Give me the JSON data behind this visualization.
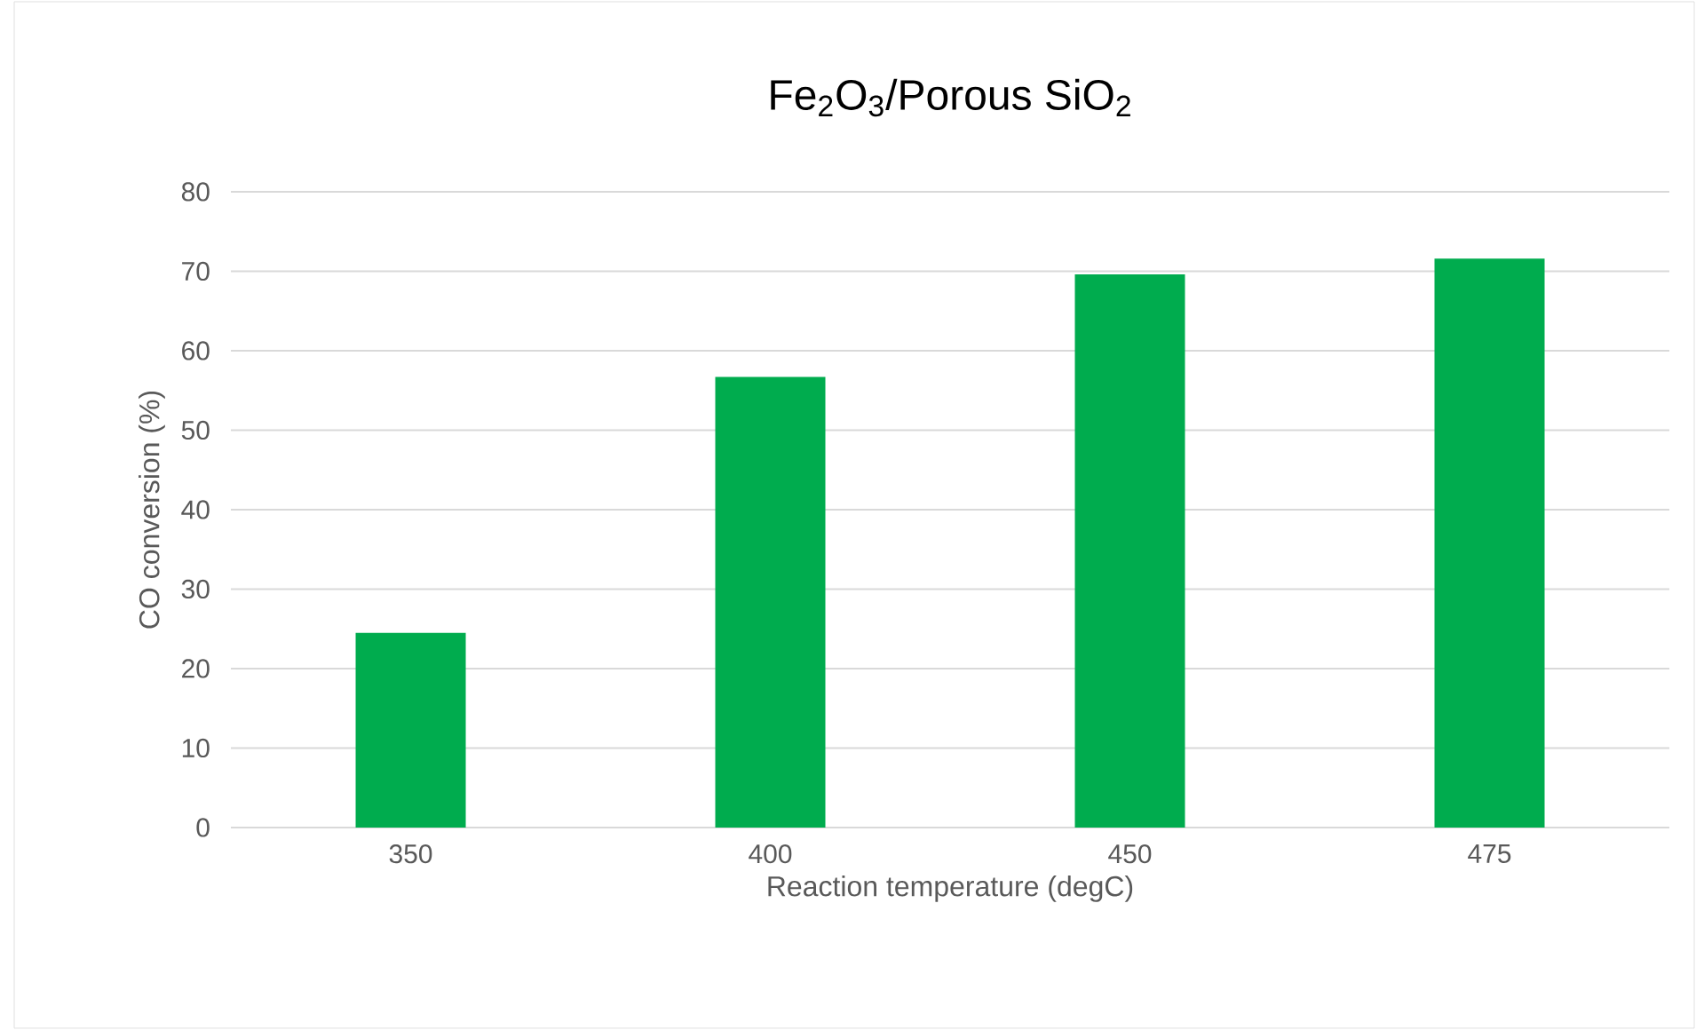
{
  "chart_data": {
    "type": "bar",
    "title": "Fe$_{2}$O$_{3}$/Porous SiO$_{2}$",
    "xlabel": "Reaction temperature (degC)",
    "ylabel": "CO conversion (%)",
    "categories": [
      "350",
      "400",
      "450",
      "475"
    ],
    "values": [
      24.5,
      56.7,
      69.6,
      71.6
    ],
    "color": "#00ac4e",
    "ylim": [
      0,
      80
    ],
    "yticks": [
      0,
      10,
      20,
      30,
      40,
      50,
      60,
      70,
      80
    ],
    "grid": "y"
  }
}
